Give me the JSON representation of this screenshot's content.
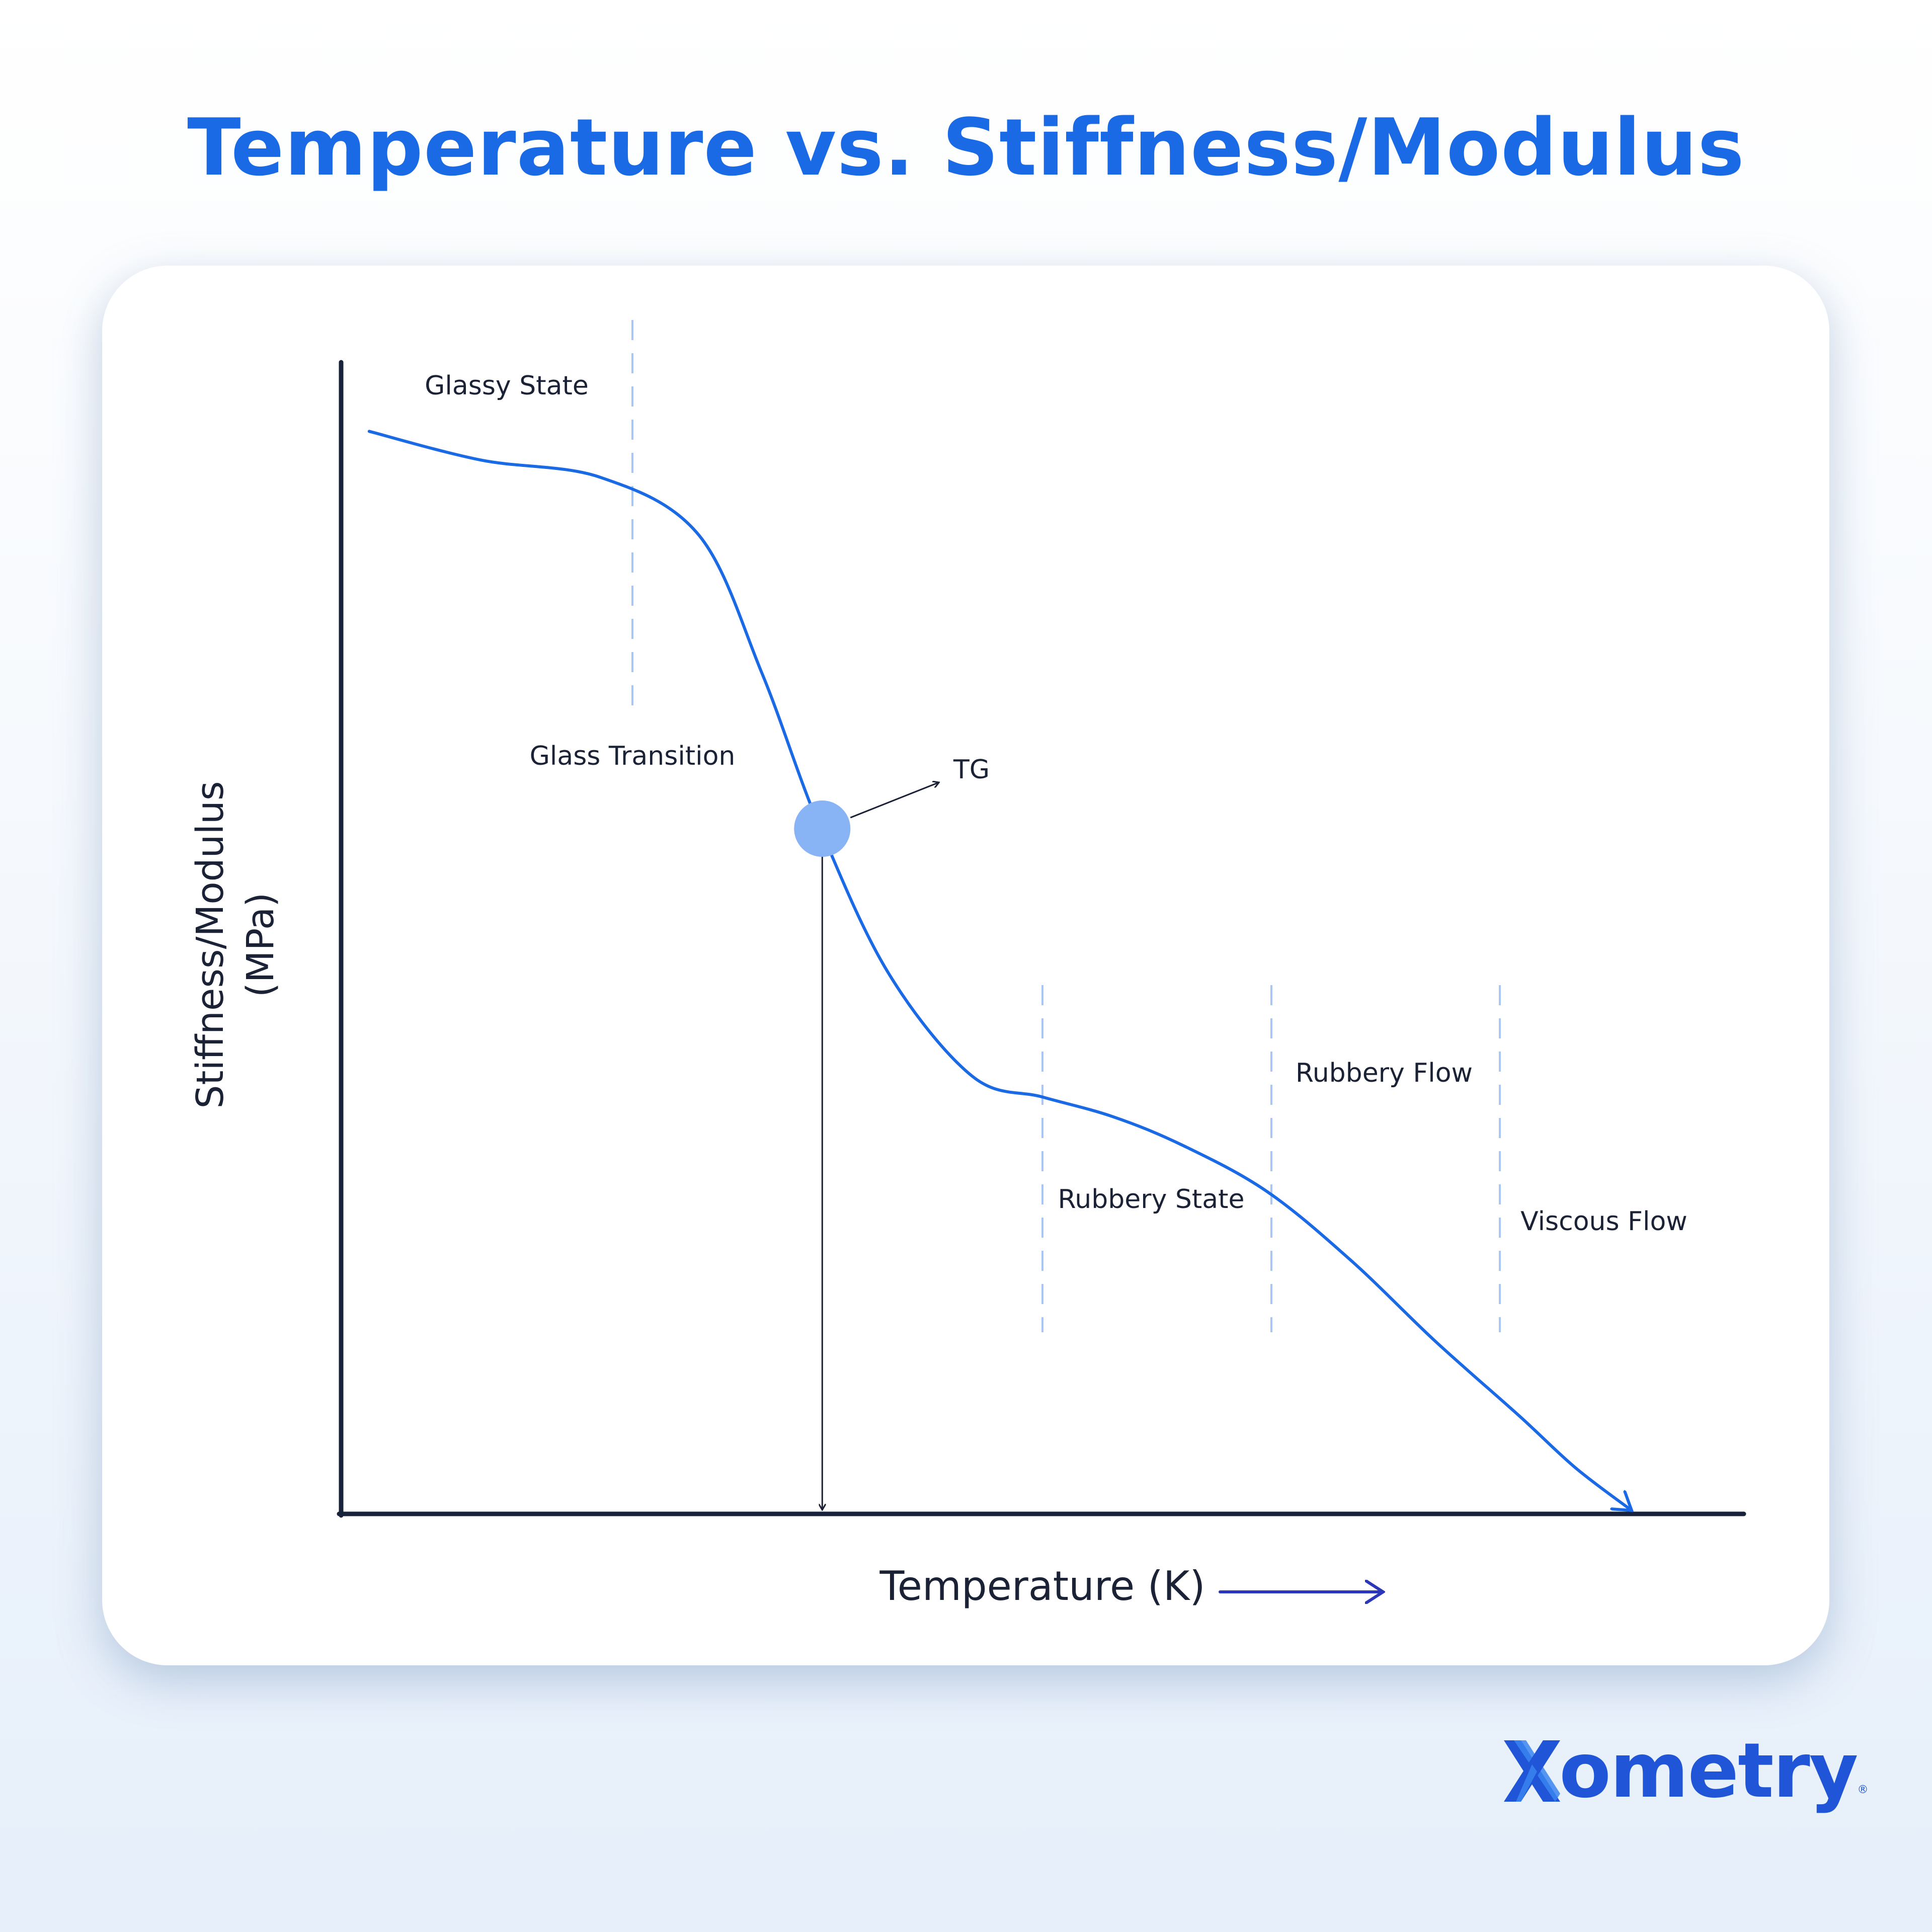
{
  "title": "Temperature vs. Stiffness/Modulus",
  "chart_data": {
    "type": "line",
    "title": "Temperature vs. Stiffness/Modulus",
    "xlabel": "Temperature (K)",
    "ylabel_lines": [
      "Stiffness/Modulus",
      "(MPa)"
    ],
    "ylabel": "Stiffness/Modulus (MPa)",
    "axis_ticks": "none",
    "grid": false,
    "x": [
      0.02,
      0.1,
      0.185,
      0.255,
      0.3,
      0.34,
      0.39,
      0.45,
      0.5,
      0.55,
      0.6,
      0.66,
      0.72,
      0.78,
      0.84,
      0.88,
      0.92
    ],
    "y": [
      0.94,
      0.915,
      0.9,
      0.85,
      0.73,
      0.6,
      0.47,
      0.38,
      0.362,
      0.345,
      0.32,
      0.28,
      0.22,
      0.15,
      0.085,
      0.04,
      0.003
    ],
    "tg_point": {
      "label": "TG",
      "x": 0.343,
      "y": 0.595
    },
    "regions": [
      {
        "label": "Glassy State"
      },
      {
        "label": "Glass Transition"
      },
      {
        "label": "Rubbery State"
      },
      {
        "label": "Rubbery Flow"
      },
      {
        "label": "Viscous Flow"
      }
    ],
    "region_dividers_x": [
      0.207,
      0.499,
      0.662,
      0.825
    ],
    "colors": {
      "curve": "#1a6ae6",
      "tg_point": "#88b3f5",
      "divider": "#a9c6f4",
      "axis": "#17223b",
      "xlabel_arrow": "#2b36b8"
    }
  },
  "brand": {
    "name": "ometry",
    "registered": "®",
    "mark_icon": "xometry-x-mark",
    "color": "#1f55d6"
  }
}
